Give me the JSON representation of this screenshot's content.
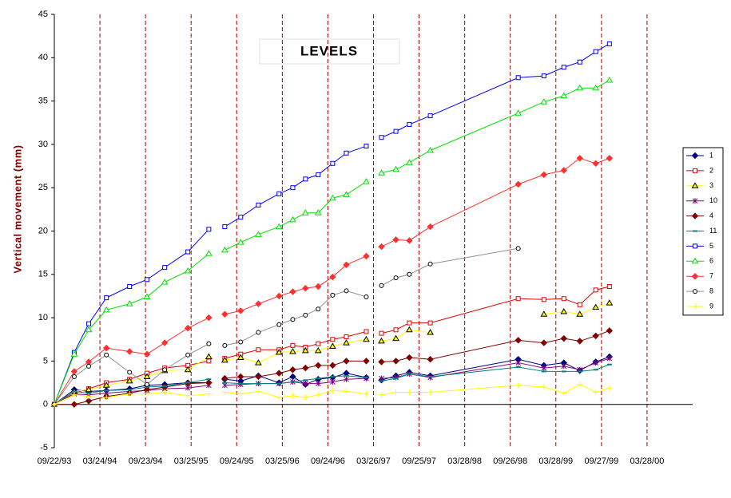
{
  "chart_data": {
    "type": "line",
    "title": "LEVELS",
    "y_label": "Vertical movement (mm)",
    "x": [
      34234,
      34314,
      34372,
      34443,
      34536,
      34606,
      34677,
      34770,
      34854,
      null,
      34918,
      34982,
      35053,
      35136,
      35191,
      35242,
      35293,
      35351,
      35406,
      35486,
      null,
      35547,
      35605,
      35659,
      35743,
      36096,
      36199,
      36279,
      36343,
      36407,
      36462
    ],
    "xlim": [
      34234,
      36796
    ],
    "xticks": [
      {
        "value": 34234,
        "label": "09/22/93"
      },
      {
        "value": 34417,
        "label": "03/24/94"
      },
      {
        "value": 34600,
        "label": "09/23/94"
      },
      {
        "value": 34783,
        "label": "03/25/95"
      },
      {
        "value": 34966,
        "label": "09/24/95"
      },
      {
        "value": 35149,
        "label": "03/25/96"
      },
      {
        "value": 35332,
        "label": "09/24/96"
      },
      {
        "value": 35515,
        "label": "03/26/97"
      },
      {
        "value": 35698,
        "label": "09/25/97"
      },
      {
        "value": 35881,
        "label": "03/28/98"
      },
      {
        "value": 36064,
        "label": "09/26/98"
      },
      {
        "value": 36247,
        "label": "03/28/99"
      },
      {
        "value": 36430,
        "label": "09/27/99"
      },
      {
        "value": 36613,
        "label": "03/28/00"
      }
    ],
    "ylim": [
      -5,
      45
    ],
    "yticks": [
      -5,
      0,
      5,
      10,
      15,
      20,
      25,
      30,
      35,
      40,
      45
    ],
    "grid": true,
    "legend": "right",
    "series": [
      {
        "name": "1",
        "color": "#000080",
        "marker": "diamond",
        "marker_fill": "#000080",
        "values": [
          0,
          1.7,
          1.5,
          1.6,
          1.8,
          2.2,
          2.3,
          2.5,
          2.5,
          null,
          2.9,
          2.7,
          3.3,
          2.5,
          3.2,
          2.3,
          2.9,
          3.1,
          3.6,
          3.1,
          null,
          2.8,
          3.3,
          3.7,
          3.3,
          5.2,
          4.5,
          4.8,
          3.9,
          4.9,
          5.5
        ]
      },
      {
        "name": "2",
        "color": "#e00000",
        "marker": "square",
        "marker_fill": "#ffffff",
        "values": [
          0,
          1.3,
          1.8,
          2.5,
          2.9,
          3.6,
          4.2,
          4.5,
          5.0,
          null,
          5.3,
          5.8,
          6.3,
          6.3,
          6.8,
          6.6,
          7.0,
          7.5,
          7.8,
          8.4,
          null,
          8.2,
          8.6,
          9.4,
          9.4,
          12.2,
          12.1,
          12.2,
          11.5,
          13.2,
          13.6
        ]
      },
      {
        "name": "3",
        "color": "#ffff00",
        "marker": "triangle",
        "marker_fill": "#ffff00",
        "values": [
          0,
          1.5,
          1.7,
          2.2,
          2.7,
          3.2,
          3.9,
          4.0,
          5.5,
          null,
          5.1,
          5.4,
          4.8,
          6.0,
          6.1,
          6.2,
          6.2,
          6.7,
          7.1,
          7.5,
          null,
          7.3,
          7.6,
          8.6,
          8.3,
          null,
          10.4,
          10.7,
          10.4,
          11.2,
          11.7
        ]
      },
      {
        "name": "10",
        "color": "#800080",
        "marker": "star",
        "marker_fill": "#800080",
        "values": [
          0,
          1.2,
          1.1,
          1.3,
          1.5,
          1.6,
          1.8,
          1.9,
          2.2,
          null,
          2.2,
          2.3,
          2.4,
          2.4,
          2.6,
          2.4,
          2.4,
          2.6,
          2.9,
          3.0,
          null,
          3.0,
          3.1,
          3.5,
          3.1,
          4.8,
          4.2,
          4.4,
          4.0,
          4.8,
          5.3
        ]
      },
      {
        "name": "4",
        "color": "#800000",
        "marker": "diamond",
        "marker_fill": "#800000",
        "values": [
          0,
          0,
          0.4,
          0.9,
          1.3,
          1.7,
          2.0,
          2.4,
          2.5,
          null,
          3.0,
          3.2,
          3.2,
          3.6,
          4.0,
          4.2,
          4.5,
          4.5,
          5.0,
          5.0,
          null,
          4.9,
          5.0,
          5.4,
          5.2,
          7.4,
          7.1,
          7.6,
          7.3,
          7.9,
          8.5
        ]
      },
      {
        "name": "11",
        "color": "#008080",
        "marker": "dash",
        "marker_fill": "#008080",
        "values": [
          0,
          1.5,
          1.3,
          1.6,
          1.7,
          2.0,
          2.1,
          2.5,
          2.9,
          null,
          2.5,
          2.4,
          2.4,
          2.4,
          2.6,
          2.8,
          3.0,
          3.2,
          3.3,
          3.1,
          null,
          2.7,
          3.0,
          3.5,
          3.2,
          4.3,
          3.8,
          3.8,
          3.8,
          4.0,
          4.6
        ]
      },
      {
        "name": "5",
        "color": "#0000ff",
        "marker": "square",
        "marker_fill": "#ffffff",
        "values": [
          0,
          6.0,
          9.3,
          12.3,
          13.6,
          14.4,
          15.8,
          17.6,
          20.2,
          null,
          20.5,
          21.6,
          23.0,
          24.3,
          25.0,
          26.0,
          26.5,
          27.8,
          29.0,
          29.8,
          null,
          30.8,
          31.5,
          32.3,
          33.3,
          37.7,
          37.9,
          38.9,
          39.5,
          40.7,
          41.6
        ]
      },
      {
        "name": "6",
        "color": "#00e000",
        "marker": "triangle",
        "marker_fill": "#ffffff",
        "values": [
          0,
          5.8,
          8.6,
          10.9,
          11.6,
          12.4,
          14.1,
          15.4,
          17.4,
          null,
          17.8,
          18.7,
          19.6,
          20.5,
          21.3,
          22.1,
          22.1,
          23.8,
          24.2,
          25.7,
          null,
          26.7,
          27.1,
          27.9,
          29.3,
          33.6,
          34.9,
          35.6,
          36.5,
          36.5,
          37.4
        ]
      },
      {
        "name": "7",
        "color": "#ff3030",
        "marker": "diamond",
        "marker_fill": "#ff3030",
        "values": [
          0,
          3.8,
          4.9,
          6.5,
          6.1,
          5.8,
          7.1,
          8.8,
          10.0,
          null,
          10.4,
          10.8,
          11.6,
          12.5,
          13.0,
          13.4,
          13.6,
          14.7,
          16.1,
          17.1,
          null,
          18.2,
          19.0,
          18.9,
          20.5,
          25.4,
          26.5,
          27.0,
          28.4,
          27.8,
          28.4
        ]
      },
      {
        "name": "8",
        "color": "#909090",
        "marker": "circle",
        "marker_fill": "#ffffff",
        "values": [
          0,
          3.2,
          4.4,
          5.7,
          3.7,
          2.3,
          4.0,
          5.7,
          7.0,
          null,
          6.8,
          7.2,
          8.3,
          9.2,
          9.8,
          10.3,
          11.0,
          12.6,
          13.1,
          12.4,
          null,
          13.7,
          14.6,
          15.0,
          16.2,
          18.0,
          null,
          null,
          null,
          null,
          null
        ]
      },
      {
        "name": "9",
        "color": "#ffff00",
        "marker": "plus",
        "marker_fill": "#ffff00",
        "values": [
          0,
          1.1,
          0.9,
          0.8,
          1.2,
          1.2,
          1.4,
          1.0,
          1.2,
          null,
          1.4,
          1.2,
          1.5,
          0.8,
          1.0,
          0.8,
          1.1,
          1.6,
          1.5,
          1.2,
          null,
          1.1,
          1.4,
          1.4,
          1.4,
          2.2,
          2.0,
          1.3,
          2.3,
          1.4,
          1.9
        ]
      }
    ]
  }
}
